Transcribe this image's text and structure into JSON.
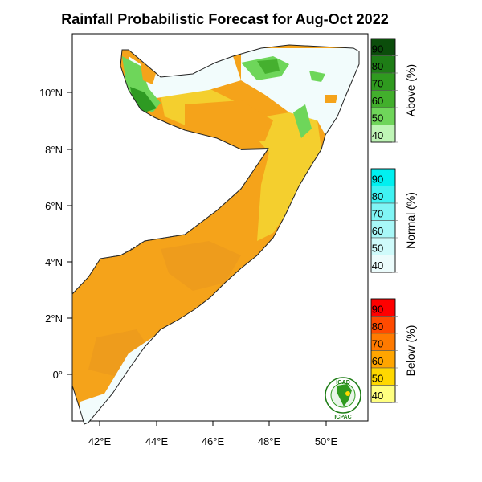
{
  "map": {
    "title": "Rainfall Probabilistic Forecast for Aug-Oct 2022",
    "lon_ticks": [
      "42°E",
      "44°E",
      "46°E",
      "48°E",
      "50°E"
    ],
    "lat_ticks": [
      "10°N",
      "8°N",
      "6°N",
      "4°N",
      "2°N",
      "0°"
    ],
    "extent": {
      "lon": [
        41.0,
        51.3
      ],
      "lat": [
        -1.7,
        11.9
      ]
    }
  },
  "legends": [
    {
      "id": "above",
      "title": "Above (%)",
      "labels": [
        "90",
        "80",
        "70",
        "60",
        "50",
        "40"
      ],
      "colors": [
        "#0b4d0b",
        "#1e7d16",
        "#2f9a1f",
        "#42af2c",
        "#6fd55a",
        "#bff5b6"
      ]
    },
    {
      "id": "normal",
      "title": "Normal (%)",
      "labels": [
        "90",
        "80",
        "70",
        "60",
        "50",
        "40"
      ],
      "colors": [
        "#00f0f0",
        "#40f2f2",
        "#80f5f5",
        "#a8f8f8",
        "#cffbfb",
        "#ecfcfc"
      ]
    },
    {
      "id": "below",
      "title": "Below (%)",
      "labels": [
        "90",
        "80",
        "70",
        "60",
        "50",
        "40"
      ],
      "colors": [
        "#ff0000",
        "#ff4a00",
        "#ff7a00",
        "#ffa500",
        "#ffd800",
        "#ffff80"
      ]
    }
  ],
  "logo": {
    "top_text": "IGAD",
    "bottom_text": "ICPAC"
  },
  "colors": {
    "below_50": "#f5a31a",
    "below_40": "#f4cf2e",
    "below_50b": "#ee9c1c",
    "normal_40": "#f2fcfc",
    "above_50": "#6ed65a",
    "above_60": "#45b02f",
    "above_70": "#2e9a22"
  }
}
